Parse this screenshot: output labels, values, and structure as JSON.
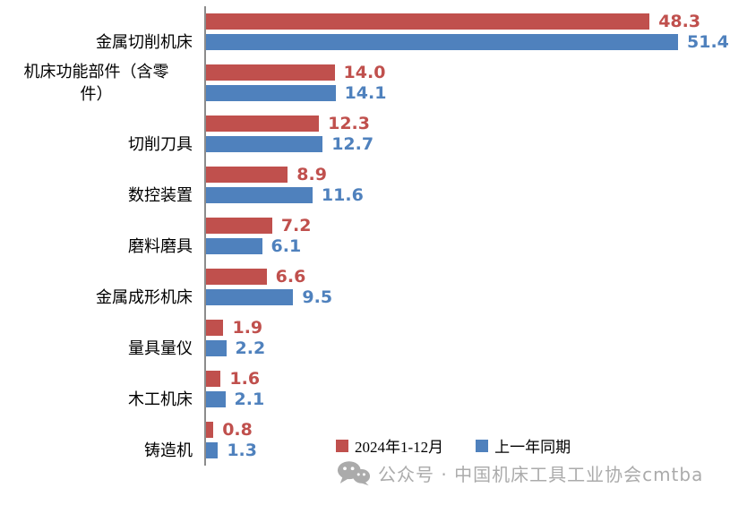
{
  "chart_data": {
    "type": "bar",
    "orientation": "horizontal",
    "title": "",
    "xlabel": "",
    "ylabel": "",
    "xlim": [
      0,
      51.4
    ],
    "value_axis_visible": false,
    "gridlines": false,
    "legend_position": "bottom",
    "categories": [
      "金属切削机床",
      "机床功能部件（含零件）",
      "切削刀具",
      "数控装置",
      "磨料磨具",
      "金属成形机床",
      "量具量仪",
      "木工机床",
      "铸造机"
    ],
    "series": [
      {
        "id": "period-2024",
        "name": "2024年1-12月",
        "color": "#C0504D",
        "values": [
          48.3,
          14.0,
          12.3,
          8.9,
          7.2,
          6.6,
          1.9,
          1.6,
          0.8
        ],
        "labels": [
          "48.3",
          "14.0",
          "12.3",
          "8.9",
          "7.2",
          "6.6",
          "1.9",
          "1.6",
          "0.8"
        ]
      },
      {
        "id": "prior-year",
        "name": "上一年同期",
        "color": "#4F81BD",
        "values": [
          51.4,
          14.1,
          12.7,
          11.6,
          6.1,
          9.5,
          2.2,
          2.1,
          1.3
        ],
        "labels": [
          "51.4",
          "14.1",
          "12.7",
          "11.6",
          "6.1",
          "9.5",
          "2.2",
          "2.1",
          "1.3"
        ]
      }
    ]
  },
  "axis": {
    "line_color": "#8C8C8C"
  },
  "watermark": {
    "icon": "wechat-icon",
    "text": "公众号 · 中国机床工具工业协会cmtba",
    "color": "#ABABAB"
  }
}
